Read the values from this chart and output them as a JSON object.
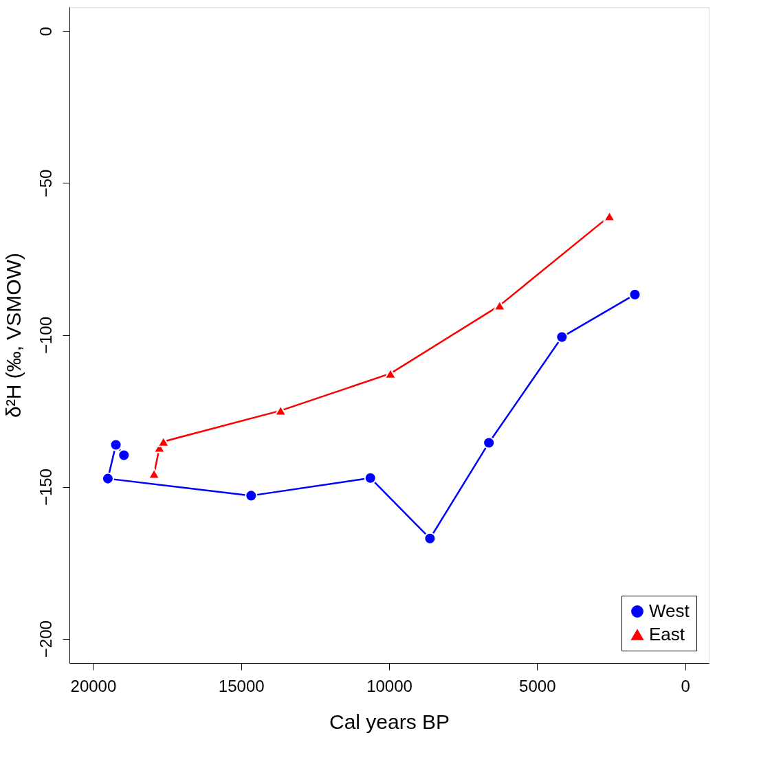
{
  "chart_data": {
    "type": "line",
    "xlabel": "Cal years BP",
    "ylabel": "δ²H (‰, VSMOW)",
    "xlim": [
      20800,
      -800
    ],
    "xticks": [
      20000,
      15000,
      10000,
      5000,
      0
    ],
    "ylim": [
      -208,
      8
    ],
    "yticks": [
      0,
      -50,
      -100,
      -150,
      -200
    ],
    "grid": false,
    "legend": "bottom right",
    "line_style": "solid",
    "series": [
      {
        "name": "West",
        "color": "#0000ff",
        "marker": "circle",
        "x": [
          18959,
          19231,
          19502,
          14661,
          10633,
          8620,
          6629,
          4163,
          1697
        ],
        "values": [
          -139.6,
          -136.2,
          -147.3,
          -152.9,
          -147.1,
          -167.0,
          -135.5,
          -100.7,
          -86.7
        ]
      },
      {
        "name": "East",
        "color": "#ff0000",
        "marker": "triangle",
        "x": [
          17941,
          17760,
          17624,
          13665,
          9955,
          6267,
          2557
        ],
        "values": [
          -145.7,
          -137.1,
          -135.1,
          -124.9,
          -112.7,
          -90.3,
          -60.9
        ]
      }
    ]
  }
}
